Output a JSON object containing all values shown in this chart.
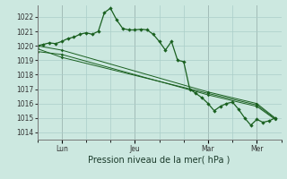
{
  "xlabel": "Pression niveau de la mer( hPa )",
  "background_color": "#cce8e0",
  "grid_color": "#aacec8",
  "line_color": "#1a6020",
  "ylim": [
    1013.5,
    1022.8
  ],
  "yticks": [
    1014,
    1015,
    1016,
    1017,
    1018,
    1019,
    1020,
    1021,
    1022
  ],
  "xtick_labels": [
    "Lun",
    "Jeu",
    "Mar",
    "Mer"
  ],
  "xtick_positions": [
    24,
    96,
    168,
    216
  ],
  "xlim": [
    0,
    240
  ],
  "series1_x": [
    0,
    6,
    12,
    18,
    24,
    30,
    36,
    42,
    48,
    54,
    60,
    66,
    72,
    78,
    84,
    90,
    96,
    102,
    108,
    114,
    120,
    126,
    132,
    138,
    144,
    150,
    156,
    162,
    168,
    174,
    180,
    186,
    192,
    198,
    204,
    210,
    216,
    222,
    228,
    234
  ],
  "series1_y": [
    1020.0,
    1020.1,
    1020.2,
    1020.15,
    1020.3,
    1020.5,
    1020.6,
    1020.8,
    1020.9,
    1020.8,
    1021.0,
    1022.3,
    1022.6,
    1021.8,
    1021.2,
    1021.1,
    1021.1,
    1021.15,
    1021.1,
    1020.8,
    1020.3,
    1019.7,
    1020.3,
    1019.0,
    1018.9,
    1017.0,
    1016.7,
    1016.4,
    1016.0,
    1015.5,
    1015.8,
    1016.0,
    1016.1,
    1015.6,
    1015.0,
    1014.5,
    1014.9,
    1014.7,
    1014.8,
    1015.0
  ],
  "series2_x": [
    0,
    24,
    168,
    216,
    234
  ],
  "series2_y": [
    1020.0,
    1019.7,
    1016.8,
    1016.0,
    1015.0
  ],
  "series3_x": [
    0,
    24,
    168,
    216,
    234
  ],
  "series3_y": [
    1019.6,
    1019.4,
    1016.6,
    1015.8,
    1014.9
  ],
  "series4_x": [
    0,
    24,
    168,
    216,
    234
  ],
  "series4_y": [
    1019.8,
    1019.2,
    1016.7,
    1015.9,
    1014.95
  ]
}
